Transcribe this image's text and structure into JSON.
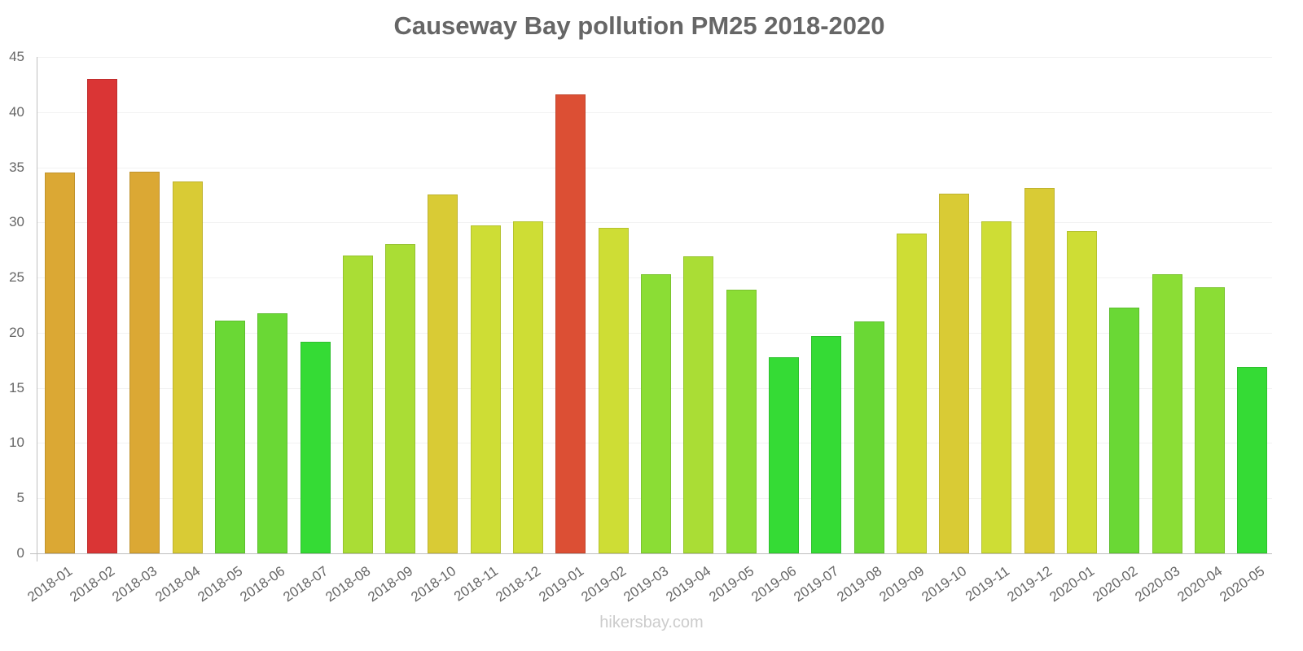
{
  "chart_data": {
    "type": "bar",
    "title": "Causeway Bay pollution PM25 2018-2020",
    "xlabel": "",
    "ylabel": "",
    "ylim": [
      0,
      45
    ],
    "yticks": [
      0,
      5,
      10,
      15,
      20,
      25,
      30,
      35,
      40,
      45
    ],
    "grid": true,
    "legend": null,
    "categories": [
      "2018-01",
      "2018-02",
      "2018-03",
      "2018-04",
      "2018-05",
      "2018-06",
      "2018-07",
      "2018-08",
      "2018-09",
      "2018-10",
      "2018-11",
      "2018-12",
      "2019-01",
      "2019-02",
      "2019-03",
      "2019-04",
      "2019-05",
      "2019-06",
      "2019-07",
      "2019-08",
      "2019-09",
      "2019-10",
      "2019-11",
      "2019-12",
      "2020-01",
      "2020-02",
      "2020-03",
      "2020-04",
      "2020-05"
    ],
    "values": [
      34.5,
      43,
      34.6,
      33.7,
      21.1,
      21.8,
      19.2,
      27,
      28,
      32.5,
      29.7,
      30.1,
      41.6,
      29.5,
      25.3,
      26.9,
      23.9,
      17.8,
      19.7,
      21,
      29,
      32.6,
      30.1,
      33.1,
      29.2,
      22.3,
      25.3,
      24.1,
      16.9
    ],
    "colors": [
      "#DBA834",
      "#DA3535",
      "#DBA834",
      "#D9CB35",
      "#6AD835",
      "#6AD835",
      "#35DB35",
      "#AADD35",
      "#AADD35",
      "#D9CB35",
      "#CEDD35",
      "#CEDD35",
      "#DC4F34",
      "#CEDD35",
      "#8BDD35",
      "#AADD35",
      "#8BDD35",
      "#35DB35",
      "#35DB35",
      "#6AD835",
      "#CEDD35",
      "#D9CB35",
      "#CEDD35",
      "#D9CB35",
      "#CEDD35",
      "#6AD835",
      "#8BDD35",
      "#8BDD35",
      "#35DB35"
    ]
  },
  "watermark": "hikersbay.com"
}
